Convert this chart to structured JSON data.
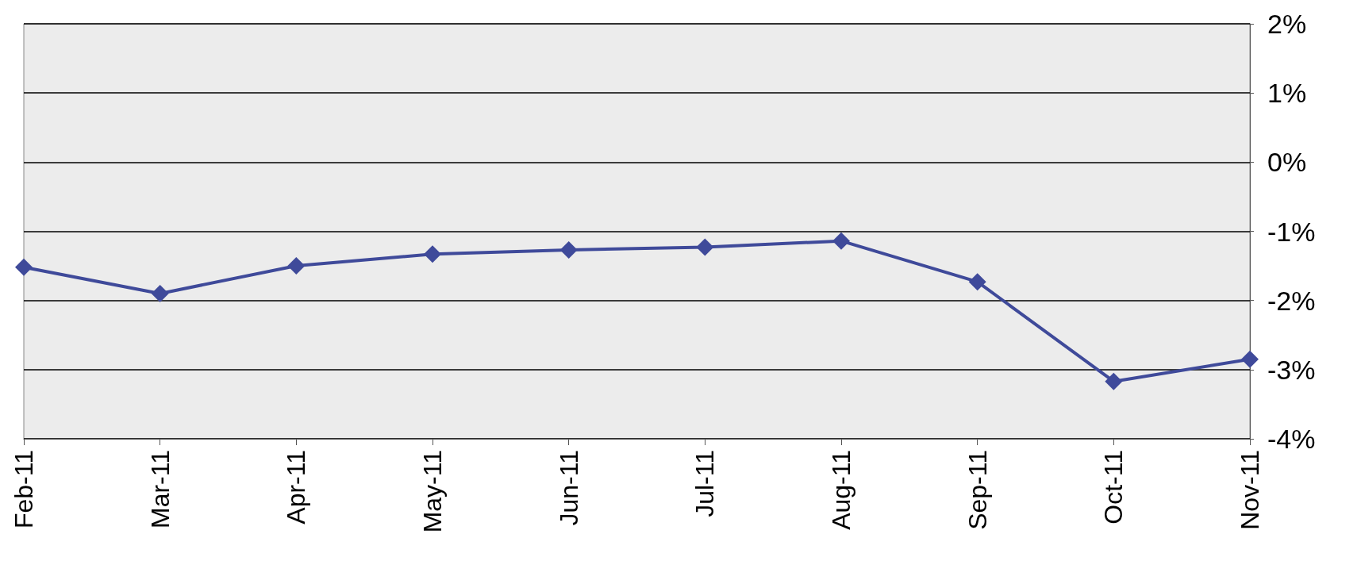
{
  "chart_data": {
    "type": "line",
    "categories": [
      "Feb-11",
      "Mar-11",
      "Apr-11",
      "May-11",
      "Jun-11",
      "Jul-11",
      "Aug-11",
      "Sep-11",
      "Oct-11",
      "Nov-11"
    ],
    "series": [
      {
        "color": "#3f4a9a",
        "values": [
          -1.52,
          -1.9,
          -1.5,
          -1.33,
          -1.27,
          -1.23,
          -1.14,
          -1.73,
          -3.17,
          -2.85
        ]
      }
    ],
    "ylim": [
      -4,
      2
    ],
    "yticks": [
      {
        "value": -4,
        "label": "-4%"
      },
      {
        "value": -3,
        "label": "-3%"
      },
      {
        "value": -2,
        "label": "-2%"
      },
      {
        "value": -1,
        "label": "-1%"
      },
      {
        "value": 0,
        "label": "0%"
      },
      {
        "value": 1,
        "label": "1%"
      },
      {
        "value": 2,
        "label": "2%"
      }
    ],
    "grid": "y",
    "marker": "diamond",
    "line_style": "solid"
  }
}
